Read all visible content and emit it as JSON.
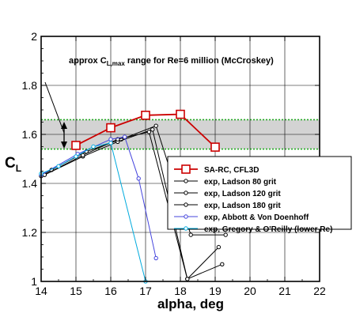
{
  "chart_data": {
    "type": "line",
    "xlabel": "alpha, deg",
    "ylabel": "C",
    "ylabel_sub": "L",
    "xlim": [
      14,
      22
    ],
    "ylim": [
      1,
      2
    ],
    "xticks": [
      14,
      15,
      16,
      17,
      18,
      19,
      20,
      21,
      22
    ],
    "yticks": [
      1,
      1.2,
      1.4,
      1.6,
      1.8,
      2
    ],
    "ytick_labels": [
      "1",
      "1.2",
      "1.4",
      "1.6",
      "1.8",
      "2"
    ],
    "grid": true,
    "legend_position": "right-middle",
    "band": {
      "y_low": 1.54,
      "y_high": 1.66,
      "fill": "#d3d3d3",
      "line_color": "#22aa22"
    },
    "annotation": {
      "prefix": "approx C",
      "sub": "L,max",
      "suffix": " range for Re=6 million (McCroskey)"
    },
    "series": [
      {
        "name": "SA-RC, CFL3D",
        "color": "#cc0000",
        "marker": "square",
        "x": [
          15,
          16,
          17,
          18,
          19
        ],
        "y": [
          1.555,
          1.627,
          1.678,
          1.682,
          1.548
        ]
      },
      {
        "name": "exp, Ladson 80 grit",
        "color": "#000000",
        "marker": "circle",
        "x": [
          14,
          14.3,
          15.3,
          16.3,
          17.3,
          18.3,
          19.3
        ],
        "y": [
          1.43,
          1.455,
          1.53,
          1.58,
          1.635,
          1.19,
          1.19
        ]
      },
      {
        "name": "exp, Ladson 120 grit",
        "color": "#000000",
        "marker": "circle",
        "x": [
          14.1,
          15.2,
          16.2,
          17.2,
          18.2,
          19.2
        ],
        "y": [
          1.435,
          1.51,
          1.57,
          1.62,
          1.01,
          1.07
        ]
      },
      {
        "name": "exp, Ladson 180 grit",
        "color": "#000000",
        "marker": "circle",
        "x": [
          14.1,
          15.2,
          16.2,
          17.1,
          18.2,
          19.1
        ],
        "y": [
          1.435,
          1.515,
          1.58,
          1.61,
          1.01,
          1.14
        ]
      },
      {
        "name": "exp, Abbott & Von Doenhoff",
        "color": "#4444dd",
        "marker": "circle",
        "x": [
          14,
          15.05,
          16,
          16.4,
          16.8,
          17.3
        ],
        "y": [
          1.435,
          1.52,
          1.58,
          1.59,
          1.42,
          1.095
        ]
      },
      {
        "name": "exp, Gregory & O'Reilly (lower Re)",
        "color": "#00aadd",
        "marker": "circle",
        "x": [
          14,
          14.5,
          15,
          15.5,
          16,
          17
        ],
        "y": [
          1.44,
          1.47,
          1.51,
          1.55,
          1.565,
          1.0
        ]
      }
    ]
  }
}
